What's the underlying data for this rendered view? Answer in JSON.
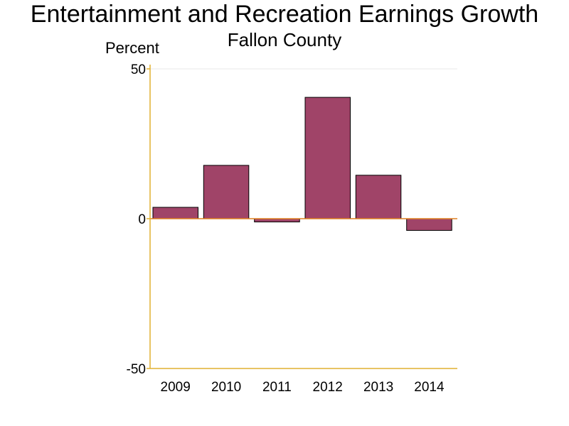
{
  "chart_data": {
    "type": "bar",
    "title": "Entertainment and Recreation Earnings Growth",
    "subtitle": "Fallon County",
    "ylabel": "Percent",
    "xlabel": "",
    "categories": [
      "2009",
      "2010",
      "2011",
      "2012",
      "2013",
      "2014"
    ],
    "values": [
      3.8,
      17.8,
      -1.1,
      40.5,
      14.5,
      -3.9
    ],
    "ylim": [
      -50,
      50
    ],
    "yticks": [
      "50",
      "0",
      "-50"
    ],
    "grid": false,
    "colors": {
      "bar": "#a04468",
      "bar_edge": "#000000",
      "axis": "#e0b030",
      "zero_line": "#e08020"
    }
  }
}
